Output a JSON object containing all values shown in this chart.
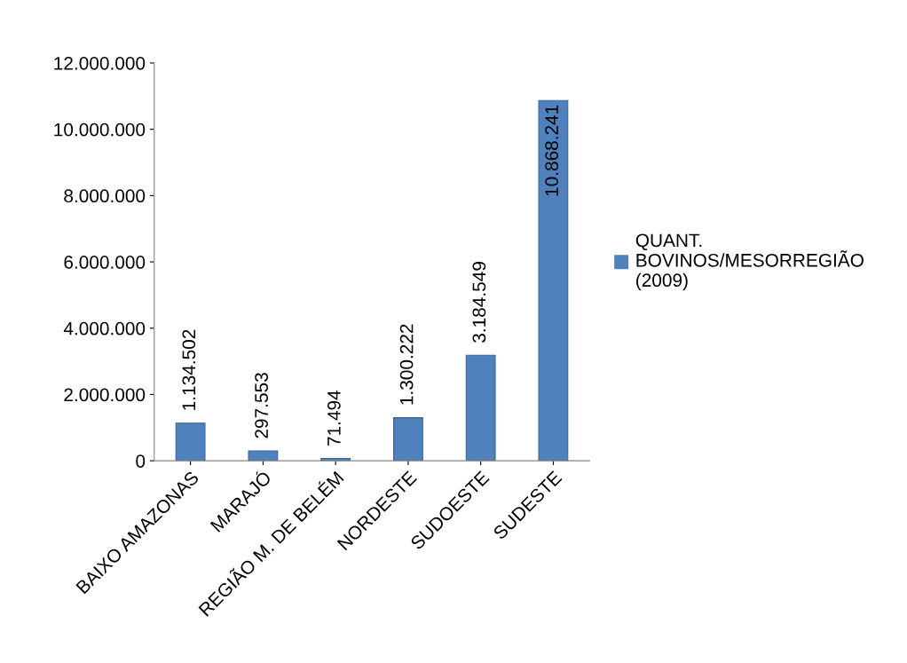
{
  "chart_data": {
    "type": "bar",
    "categories": [
      "BAIXO AMAZONAS",
      "MARAJÓ",
      "REGIÃO M. DE BELÉM",
      "NORDESTE",
      "SUDOESTE",
      "SUDESTE"
    ],
    "series": [
      {
        "name": "QUANT. BOVINOS/MESORREGIÃO (2009)",
        "color": "#4f81bd",
        "values": [
          1134502,
          297553,
          71494,
          1300222,
          3184549,
          10868241
        ],
        "value_labels": [
          "1.134.502",
          "297.553",
          "71.494",
          "1.300.222",
          "3.184.549",
          "10.868.241"
        ]
      }
    ],
    "ylim": [
      0,
      12000000
    ],
    "yticks": [
      0,
      {
        "value": 2000000,
        "label": "2.000.000"
      },
      {
        "value": 4000000,
        "label": "4.000.000"
      },
      {
        "value": 6000000,
        "label": "6.000.000"
      },
      {
        "value": 8000000,
        "label": "8.000.000"
      },
      {
        "value": 10000000,
        "label": "10.000.000"
      },
      {
        "value": 12000000,
        "label": "12.000.000"
      }
    ],
    "grid": false,
    "legend": "right"
  }
}
